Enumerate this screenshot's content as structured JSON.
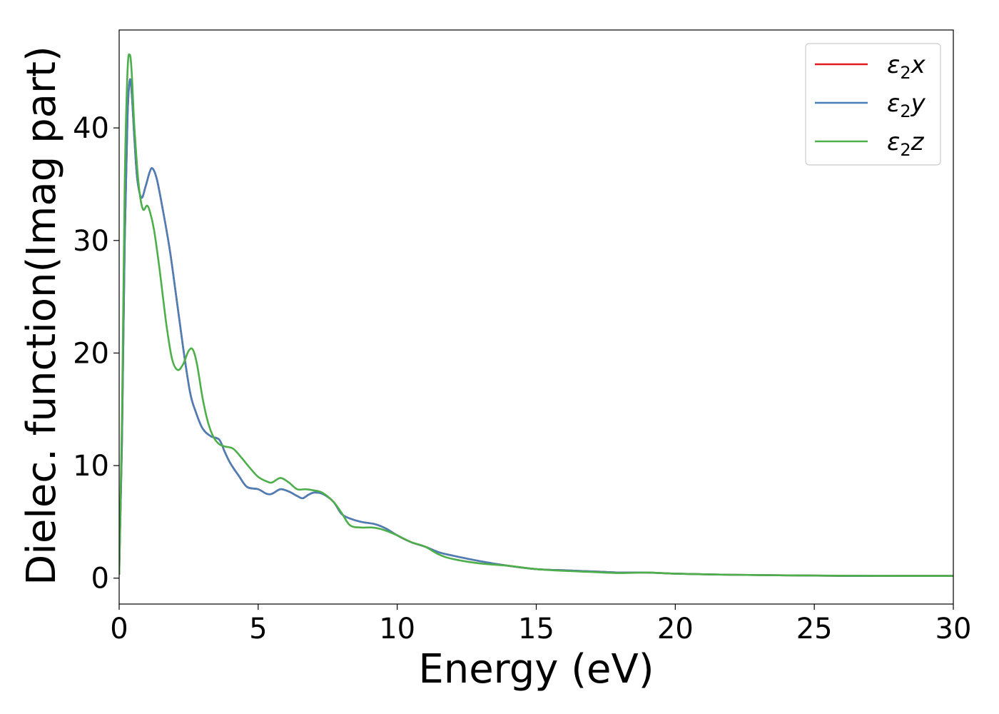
{
  "chart_data": {
    "type": "line",
    "title": "",
    "xlabel": "Energy (eV)",
    "ylabel": "Dielec. function(Imag part)",
    "xlim": [
      0,
      30
    ],
    "ylim": [
      -2.3,
      48.7
    ],
    "xticks": [
      0,
      5,
      10,
      15,
      20,
      25,
      30
    ],
    "yticks": [
      0,
      10,
      20,
      30,
      40
    ],
    "grid": false,
    "legend_position": "top-right",
    "series": [
      {
        "name": "ε₂x",
        "legend_sub": "2",
        "legend_var": "x",
        "color": "#e41a1c",
        "x": [
          0,
          0.1,
          0.2,
          0.3,
          0.38,
          0.45,
          0.55,
          0.65,
          0.8,
          0.95,
          1.1,
          1.2,
          1.35,
          1.55,
          1.8,
          2.0,
          2.3,
          2.55,
          2.75,
          3.0,
          3.3,
          3.6,
          3.8,
          4.0,
          4.3,
          4.6,
          5.0,
          5.3,
          5.5,
          5.8,
          6.1,
          6.4,
          6.6,
          6.8,
          7.0,
          7.3,
          7.7,
          8.0,
          8.3,
          8.7,
          9.2,
          9.6,
          10.0,
          10.5,
          11.0,
          11.5,
          12.0,
          13.0,
          14.0,
          15.0,
          16.0,
          17.0,
          18.0,
          19.0,
          20.0,
          22.0,
          24.0,
          26.0,
          28.0,
          30.0
        ],
        "values": [
          0.3,
          12,
          30,
          41,
          44.2,
          43.2,
          39,
          35.5,
          33.8,
          34.8,
          36.1,
          36.4,
          35.5,
          33,
          29.5,
          26,
          20.5,
          16.5,
          14.8,
          13.3,
          12.6,
          12.3,
          11.2,
          10.2,
          9.1,
          8.1,
          7.9,
          7.5,
          7.5,
          7.9,
          7.7,
          7.3,
          7.1,
          7.4,
          7.6,
          7.5,
          6.8,
          5.7,
          5.3,
          5.0,
          4.8,
          4.4,
          3.8,
          3.2,
          2.8,
          2.3,
          2.0,
          1.5,
          1.1,
          0.8,
          0.7,
          0.6,
          0.5,
          0.5,
          0.4,
          0.3,
          0.25,
          0.2,
          0.2,
          0.2
        ]
      },
      {
        "name": "ε₂y",
        "legend_sub": "2",
        "legend_var": "y",
        "color": "#4a7fb7",
        "x": [
          0,
          0.1,
          0.2,
          0.3,
          0.38,
          0.45,
          0.55,
          0.65,
          0.8,
          0.95,
          1.1,
          1.2,
          1.35,
          1.55,
          1.8,
          2.0,
          2.3,
          2.55,
          2.75,
          3.0,
          3.3,
          3.6,
          3.8,
          4.0,
          4.3,
          4.6,
          5.0,
          5.3,
          5.5,
          5.8,
          6.1,
          6.4,
          6.6,
          6.8,
          7.0,
          7.3,
          7.7,
          8.0,
          8.3,
          8.7,
          9.2,
          9.6,
          10.0,
          10.5,
          11.0,
          11.5,
          12.0,
          13.0,
          14.0,
          15.0,
          16.0,
          17.0,
          18.0,
          19.0,
          20.0,
          22.0,
          24.0,
          26.0,
          28.0,
          30.0
        ],
        "values": [
          0.3,
          12,
          30,
          41,
          44.2,
          43.2,
          39,
          35.5,
          33.8,
          34.8,
          36.1,
          36.4,
          35.5,
          33,
          29.5,
          26,
          20.5,
          16.5,
          14.8,
          13.3,
          12.6,
          12.3,
          11.2,
          10.2,
          9.1,
          8.1,
          7.9,
          7.5,
          7.5,
          7.9,
          7.7,
          7.3,
          7.1,
          7.4,
          7.6,
          7.5,
          6.8,
          5.7,
          5.3,
          5.0,
          4.8,
          4.4,
          3.8,
          3.2,
          2.8,
          2.3,
          2.0,
          1.5,
          1.1,
          0.8,
          0.7,
          0.6,
          0.5,
          0.5,
          0.4,
          0.3,
          0.25,
          0.2,
          0.2,
          0.2
        ]
      },
      {
        "name": "ε₂z",
        "legend_sub": "2",
        "legend_var": "z",
        "color": "#4daf4a",
        "x": [
          0,
          0.1,
          0.2,
          0.3,
          0.38,
          0.45,
          0.55,
          0.7,
          0.85,
          1.0,
          1.1,
          1.25,
          1.45,
          1.7,
          1.9,
          2.1,
          2.3,
          2.5,
          2.65,
          2.8,
          3.0,
          3.2,
          3.4,
          3.6,
          3.8,
          4.1,
          4.4,
          4.7,
          5.0,
          5.3,
          5.5,
          5.8,
          6.1,
          6.4,
          6.7,
          7.0,
          7.3,
          7.7,
          8.0,
          8.3,
          8.7,
          9.1,
          9.5,
          10.0,
          10.5,
          11.0,
          11.5,
          12.0,
          13.0,
          14.0,
          15.0,
          16.0,
          17.0,
          18.0,
          19.0,
          20.0,
          22.0,
          24.0,
          26.0,
          28.0,
          30.0
        ],
        "values": [
          0.3,
          14,
          35,
          45,
          46.5,
          45,
          40,
          35,
          32.8,
          33.1,
          32.6,
          31,
          27.5,
          22.5,
          19.5,
          18.5,
          19,
          20.2,
          20.3,
          19,
          16,
          13.8,
          12.5,
          11.9,
          11.7,
          11.5,
          10.7,
          9.8,
          9.0,
          8.6,
          8.5,
          8.9,
          8.5,
          7.9,
          7.9,
          7.8,
          7.6,
          6.8,
          5.8,
          4.7,
          4.5,
          4.5,
          4.3,
          3.8,
          3.2,
          2.8,
          2.1,
          1.7,
          1.3,
          1.1,
          0.8,
          0.65,
          0.55,
          0.45,
          0.5,
          0.4,
          0.3,
          0.25,
          0.22,
          0.2,
          0.2
        ]
      }
    ]
  }
}
